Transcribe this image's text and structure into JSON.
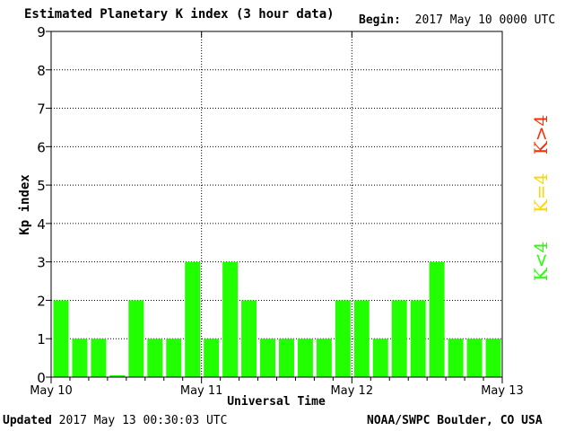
{
  "header": {
    "title": "Estimated Planetary K index (3 hour data)",
    "begin_label": "Begin:",
    "begin_value": "2017 May 10 0000 UTC"
  },
  "footer": {
    "updated_label": "Updated",
    "updated_value": "2017 May 13 00:30:03 UTC",
    "source": "NOAA/SWPC Boulder, CO USA"
  },
  "legend": {
    "above": {
      "label": "K>4",
      "color": "#ff2a00"
    },
    "equal": {
      "label": "K=4",
      "color": "#ffd400"
    },
    "below": {
      "label": "K<4",
      "color": "#22ff00"
    }
  },
  "chart_data": {
    "type": "bar",
    "title": "Estimated Planetary K index (3 hour data)",
    "xlabel": "Universal Time",
    "ylabel": "Kp index",
    "ylim": [
      0,
      9
    ],
    "yticks": [
      0,
      1,
      2,
      3,
      4,
      5,
      6,
      7,
      8,
      9
    ],
    "x_day_labels": [
      "May 10",
      "May 11",
      "May 12",
      "May 13"
    ],
    "interval_hours": 3,
    "values": [
      2,
      1,
      1,
      0.05,
      2,
      1,
      1,
      3,
      1,
      3,
      2,
      1,
      1,
      1,
      1,
      2,
      2,
      1,
      2,
      2,
      3,
      1,
      1,
      1
    ],
    "grid": true,
    "bar_color": "#22ff00"
  }
}
